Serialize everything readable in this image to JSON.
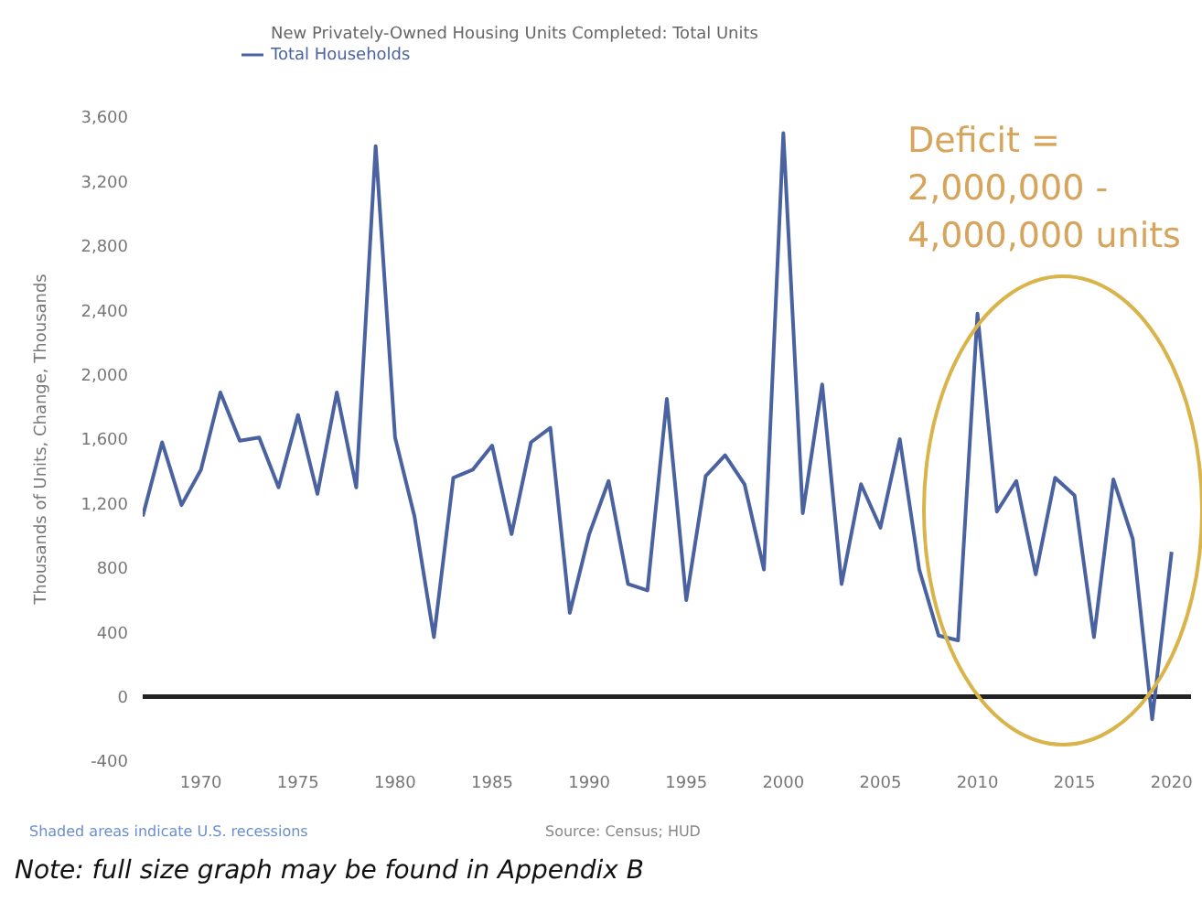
{
  "chart_data": {
    "type": "line",
    "title": "New Privately-Owned Housing Units Completed: Total Units",
    "ylabel": "Thousands of Units, Change, Thousands",
    "x": [
      1967,
      1968,
      1969,
      1970,
      1971,
      1972,
      1973,
      1974,
      1975,
      1976,
      1977,
      1978,
      1979,
      1980,
      1981,
      1982,
      1983,
      1984,
      1985,
      1986,
      1987,
      1988,
      1989,
      1990,
      1991,
      1992,
      1993,
      1994,
      1995,
      1996,
      1997,
      1998,
      1999,
      2000,
      2001,
      2002,
      2003,
      2004,
      2005,
      2006,
      2007,
      2008,
      2009,
      2010,
      2011,
      2012,
      2013,
      2014,
      2015,
      2016,
      2017,
      2018,
      2019,
      2020
    ],
    "series": [
      {
        "name": "Total Households",
        "color": "#4a62a0",
        "values": [
          1120,
          1580,
          1190,
          1410,
          1890,
          1590,
          1610,
          1300,
          1750,
          1260,
          1890,
          1300,
          3420,
          1610,
          1120,
          370,
          1360,
          1410,
          1560,
          1010,
          1580,
          1670,
          520,
          1010,
          1340,
          700,
          660,
          1850,
          600,
          1370,
          1500,
          1320,
          790,
          3500,
          1140,
          1940,
          700,
          1320,
          1050,
          1600,
          790,
          380,
          350,
          2380,
          1150,
          1340,
          760,
          1360,
          1250,
          370,
          1350,
          980,
          -140,
          900
        ]
      }
    ],
    "xlim": [
      1967,
      2021
    ],
    "xticks": [
      1970,
      1975,
      1980,
      1985,
      1990,
      1995,
      2000,
      2005,
      2010,
      2015,
      2020
    ],
    "ylim": [
      -400,
      3600
    ],
    "yticks": [
      -400,
      0,
      400,
      800,
      {
        "value": 1200,
        "label": "1,200"
      },
      {
        "value": 1600,
        "label": "1,600"
      },
      {
        "value": 2000,
        "label": "2,000"
      },
      {
        "value": 2400,
        "label": "2,400"
      },
      {
        "value": 2800,
        "label": "2,800"
      },
      {
        "value": 3200,
        "label": "3,200"
      },
      {
        "value": 3600,
        "label": "3,600"
      }
    ],
    "ref_lines": [
      {
        "axis": "y",
        "value": 0,
        "color": "#222222"
      }
    ],
    "grid": false,
    "legend": "top left",
    "marker": "none",
    "line_style": "solid",
    "annotations": [
      "Deficit = 2,000,000 - 4,000,000 units",
      "Shaded areas indicate U.S. recessions",
      "Source: Census; HUD",
      "Note: full size graph may be found in Appendix B"
    ]
  }
}
